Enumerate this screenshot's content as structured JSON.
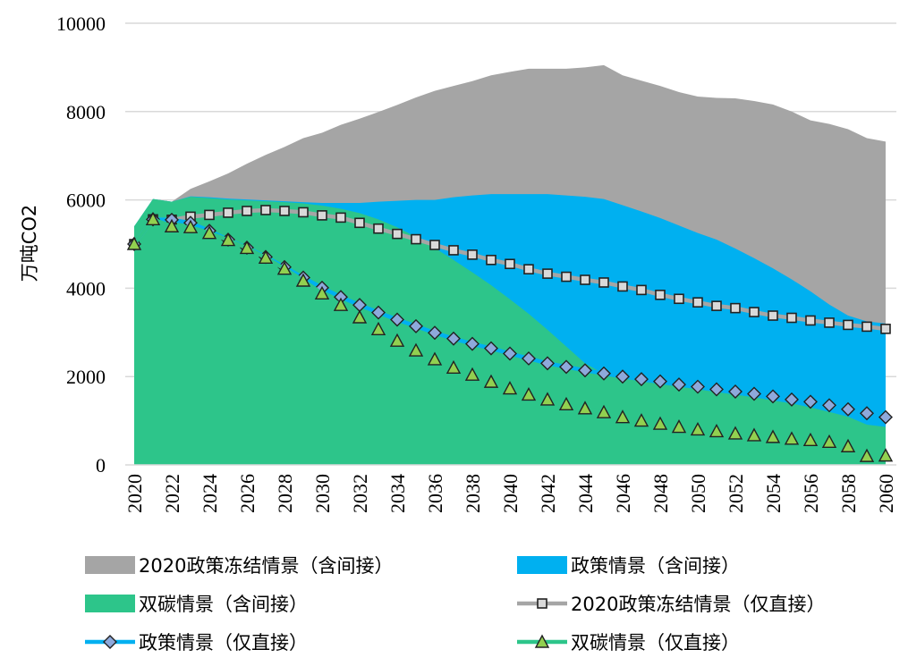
{
  "chart_data": {
    "type": "area",
    "ylabel": "万吨CO2",
    "xlabel": "",
    "ylim": [
      0,
      10000
    ],
    "y_ticks": [
      0,
      2000,
      4000,
      6000,
      8000,
      10000
    ],
    "x_ticks": [
      2020,
      2022,
      2024,
      2026,
      2028,
      2030,
      2032,
      2034,
      2036,
      2038,
      2040,
      2042,
      2044,
      2046,
      2048,
      2050,
      2052,
      2054,
      2056,
      2058,
      2060
    ],
    "grid": true,
    "legend": "bottom",
    "x": [
      2020,
      2021,
      2022,
      2023,
      2024,
      2025,
      2026,
      2027,
      2028,
      2029,
      2030,
      2031,
      2032,
      2033,
      2034,
      2035,
      2036,
      2037,
      2038,
      2039,
      2040,
      2041,
      2042,
      2043,
      2044,
      2045,
      2046,
      2047,
      2048,
      2049,
      2050,
      2051,
      2052,
      2053,
      2054,
      2055,
      2056,
      2057,
      2058,
      2059,
      2060
    ],
    "series": [
      {
        "name": "2020政策冻结情景（含间接）",
        "kind": "area",
        "color": "#a5a5a5",
        "values": [
          5400,
          6020,
          5960,
          6250,
          6420,
          6600,
          6820,
          7020,
          7200,
          7400,
          7520,
          7700,
          7840,
          7990,
          8150,
          8320,
          8470,
          8580,
          8690,
          8820,
          8900,
          8970,
          8970,
          8970,
          9000,
          9050,
          8820,
          8700,
          8580,
          8440,
          8340,
          8310,
          8300,
          8240,
          8160,
          8000,
          7800,
          7720,
          7600,
          7400,
          7320
        ]
      },
      {
        "name": "政策情景（含间接）",
        "kind": "area",
        "color": "#00b0f0",
        "values": [
          5400,
          6020,
          5960,
          6080,
          6060,
          6030,
          6010,
          5990,
          5970,
          5950,
          5930,
          5930,
          5930,
          5960,
          5980,
          6000,
          6000,
          6060,
          6100,
          6130,
          6130,
          6130,
          6130,
          6100,
          6070,
          6020,
          5880,
          5740,
          5590,
          5420,
          5250,
          5100,
          4900,
          4680,
          4450,
          4200,
          3930,
          3630,
          3380,
          3250,
          3200
        ]
      },
      {
        "name": "双碳情景（含间接）",
        "kind": "area",
        "color": "#2dc58a",
        "values": [
          5400,
          6020,
          5960,
          6070,
          6040,
          6010,
          5990,
          5970,
          5950,
          5920,
          5870,
          5800,
          5700,
          5560,
          5380,
          5160,
          4910,
          4640,
          4360,
          4070,
          3750,
          3420,
          3060,
          2680,
          2300,
          2060,
          1960,
          1890,
          1830,
          1770,
          1710,
          1650,
          1590,
          1530,
          1460,
          1390,
          1300,
          1200,
          1090,
          910,
          860
        ]
      },
      {
        "name": "2020政策冻结情景（仅直接）",
        "kind": "line",
        "color": "#a5a5a5",
        "marker": "square",
        "values": [
          5000,
          5560,
          5550,
          5620,
          5660,
          5710,
          5750,
          5770,
          5750,
          5720,
          5650,
          5600,
          5480,
          5350,
          5230,
          5110,
          4980,
          4860,
          4760,
          4640,
          4550,
          4430,
          4330,
          4260,
          4190,
          4130,
          4040,
          3960,
          3850,
          3760,
          3680,
          3600,
          3550,
          3460,
          3380,
          3330,
          3270,
          3220,
          3170,
          3130,
          3080
        ]
      },
      {
        "name": "政策情景（仅直接）",
        "kind": "line",
        "color": "#00b0f0",
        "marker": "diamond",
        "values": [
          5000,
          5560,
          5550,
          5480,
          5300,
          5100,
          4920,
          4710,
          4480,
          4240,
          4010,
          3800,
          3620,
          3450,
          3290,
          3140,
          2990,
          2860,
          2740,
          2640,
          2520,
          2410,
          2300,
          2220,
          2140,
          2070,
          2000,
          1940,
          1890,
          1820,
          1770,
          1710,
          1660,
          1610,
          1550,
          1480,
          1430,
          1350,
          1260,
          1170,
          1080
        ]
      },
      {
        "name": "双碳情景（仅直接）",
        "kind": "line",
        "color": "#2dc58a",
        "marker": "triangle",
        "values": [
          5000,
          5560,
          5400,
          5380,
          5250,
          5090,
          4910,
          4690,
          4440,
          4170,
          3880,
          3620,
          3340,
          3070,
          2810,
          2590,
          2390,
          2200,
          2040,
          1880,
          1730,
          1590,
          1480,
          1370,
          1280,
          1190,
          1080,
          1000,
          930,
          860,
          800,
          760,
          710,
          670,
          630,
          590,
          560,
          520,
          420,
          200,
          210
        ]
      }
    ]
  }
}
